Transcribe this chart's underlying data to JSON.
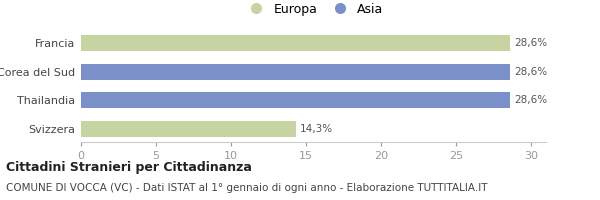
{
  "categories": [
    "Svizzera",
    "Thailandia",
    "Corea del Sud",
    "Francia"
  ],
  "values": [
    14.3,
    28.6,
    28.6,
    28.6
  ],
  "colors": [
    "#c5d4a0",
    "#7b8fc9",
    "#7b8fc9",
    "#c5d4a0"
  ],
  "bar_labels": [
    "14,3%",
    "28,6%",
    "28,6%",
    "28,6%"
  ],
  "legend_labels": [
    "Europa",
    "Asia"
  ],
  "legend_colors": [
    "#c5d4a0",
    "#7b8fc9"
  ],
  "xlim": [
    0,
    31
  ],
  "xticks": [
    0,
    5,
    10,
    15,
    20,
    25,
    30
  ],
  "title_bold": "Cittadini Stranieri per Cittadinanza",
  "subtitle": "COMUNE DI VOCCA (VC) - Dati ISTAT al 1° gennaio di ogni anno - Elaborazione TUTTITALIA.IT",
  "bg_color": "#ffffff",
  "bar_height": 0.55,
  "title_fontsize": 9,
  "subtitle_fontsize": 7.5,
  "label_fontsize": 7.5,
  "tick_fontsize": 8,
  "legend_fontsize": 9
}
